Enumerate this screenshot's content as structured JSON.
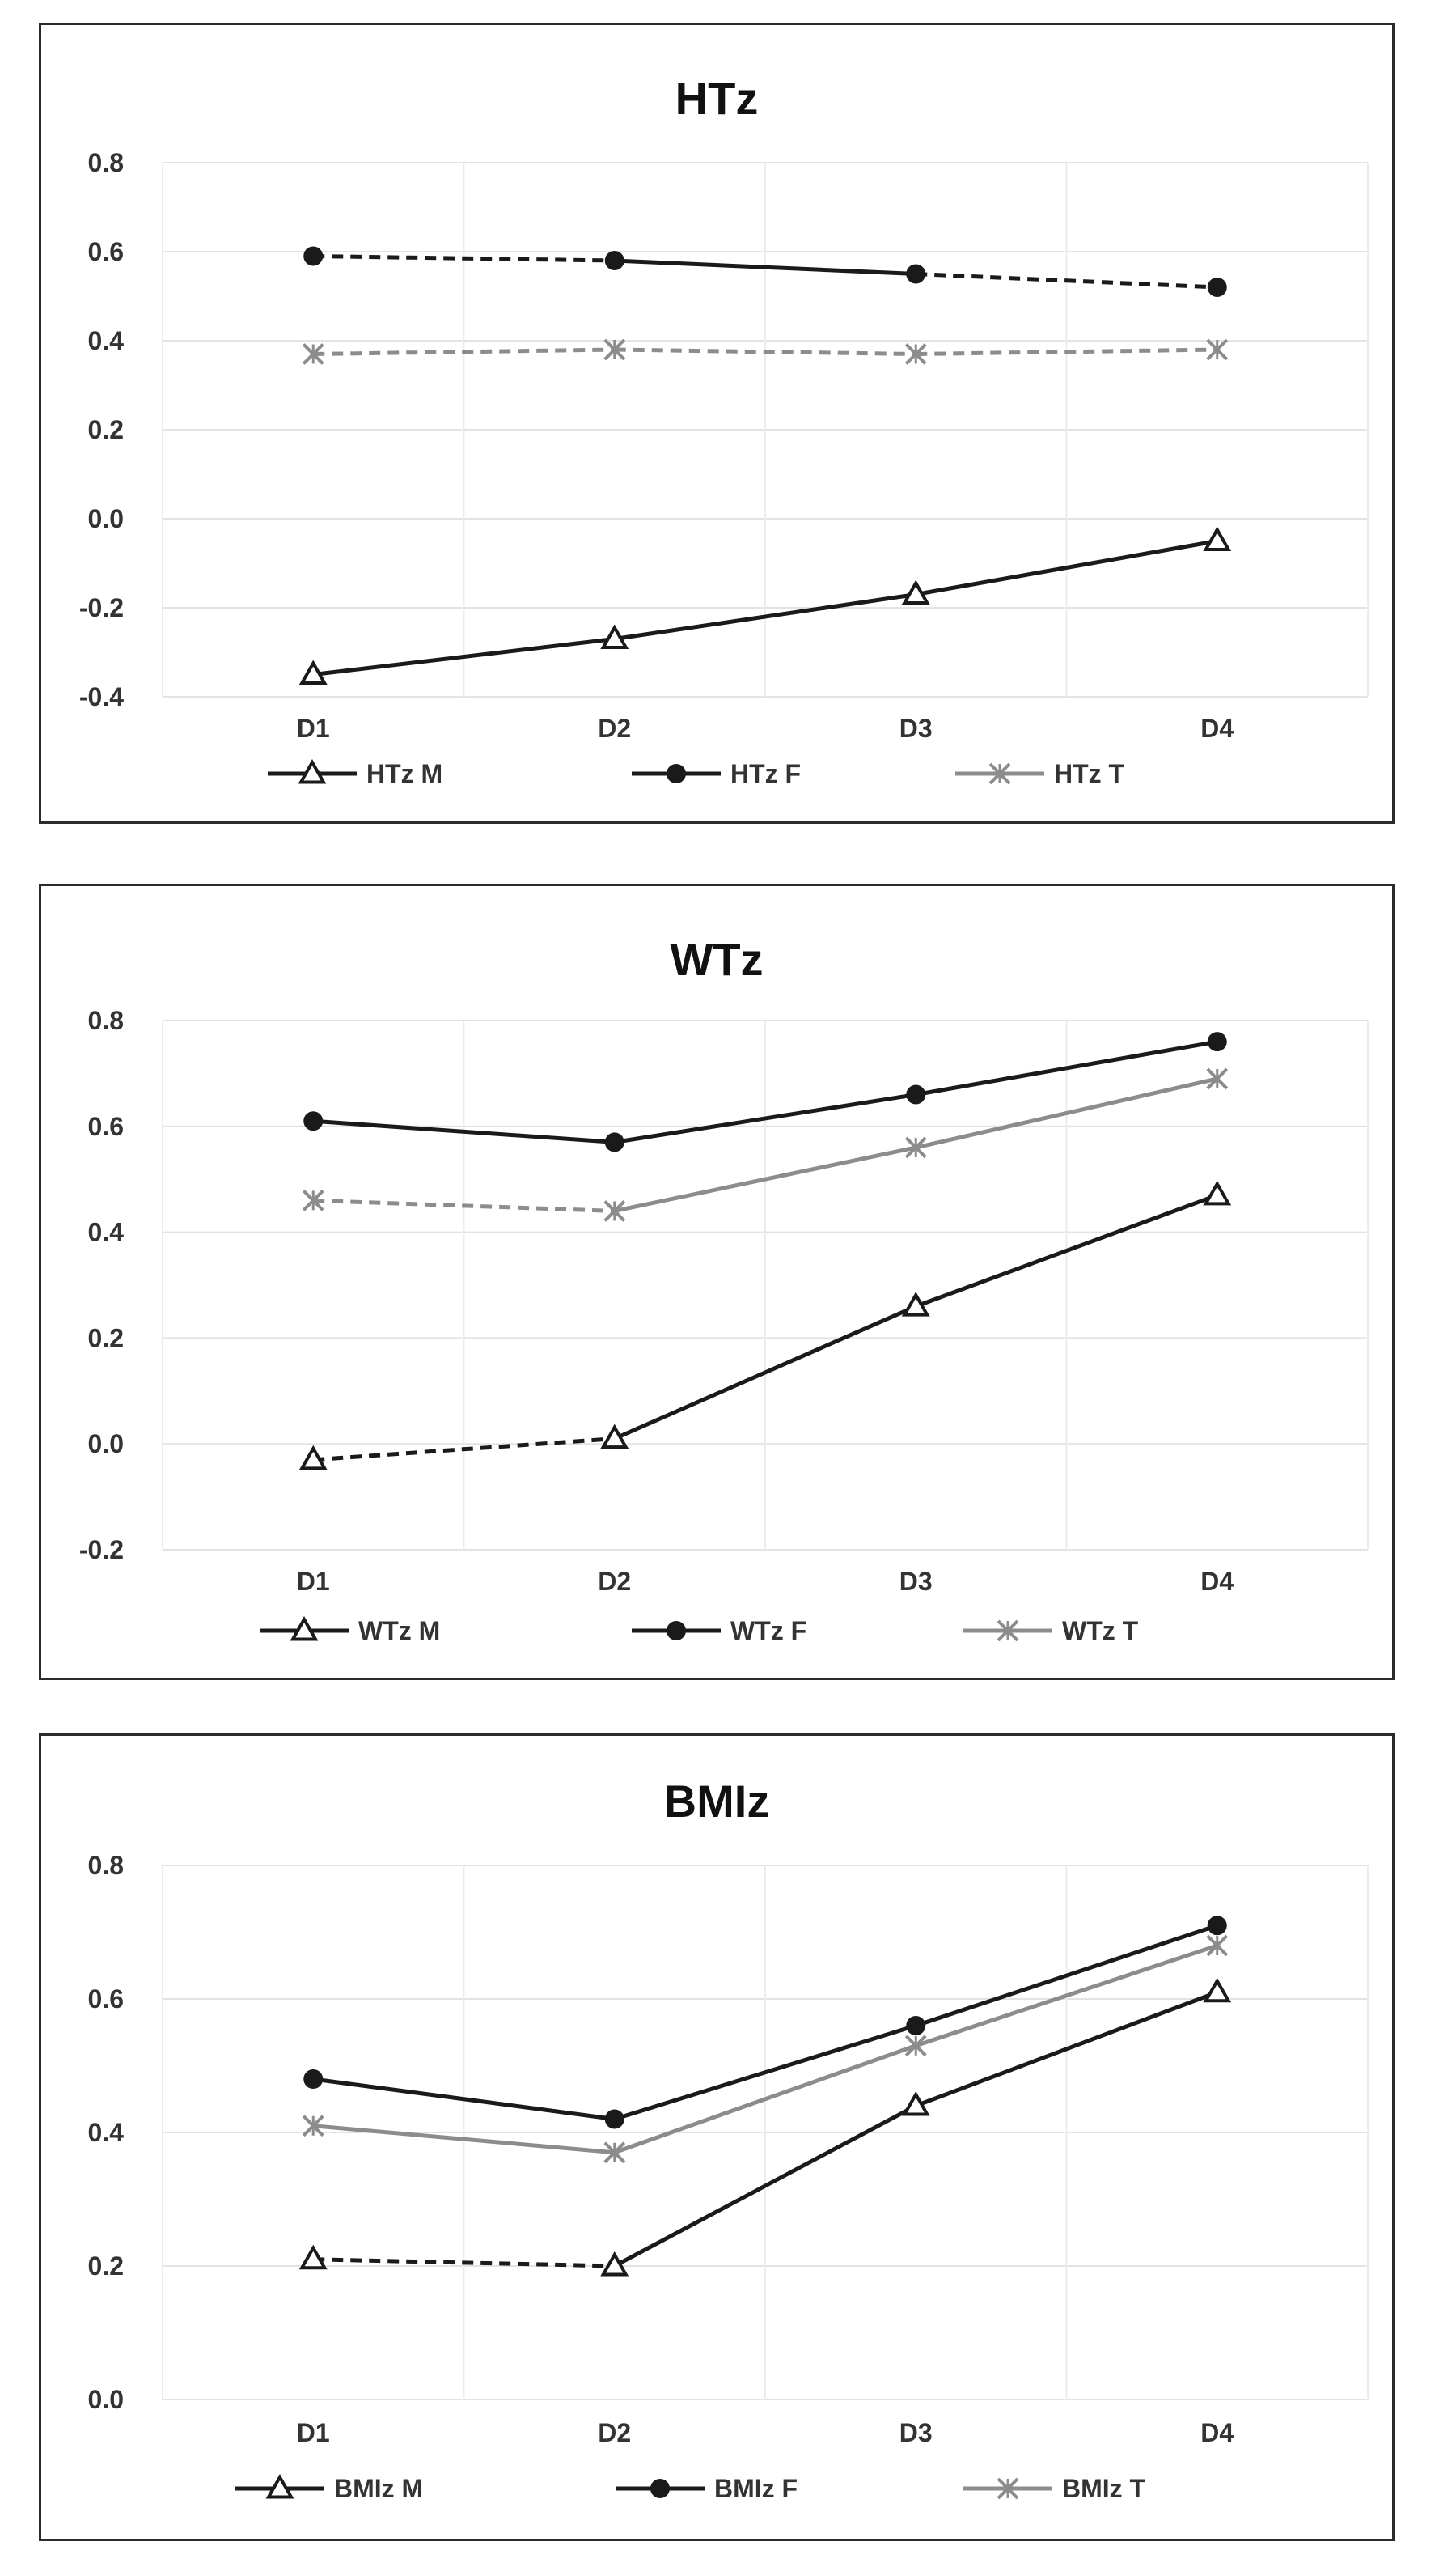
{
  "chart_data": [
    {
      "type": "line",
      "title": "HTz",
      "categories": [
        "D1",
        "D2",
        "D3",
        "D4"
      ],
      "ylim": [
        -0.4,
        0.8
      ],
      "yticks": [
        "0.8",
        "0.6",
        "0.4",
        "0.2",
        "0.0",
        "-0.2",
        "-0.4"
      ],
      "grid": true,
      "legend_position": "bottom",
      "series": [
        {
          "name": "HTz M",
          "values": [
            -0.35,
            -0.27,
            -0.17,
            -0.05
          ],
          "color": "#1a1a1a",
          "marker": "triangle",
          "dashed_segments": []
        },
        {
          "name": "HTz F",
          "values": [
            0.59,
            0.58,
            0.55,
            0.52
          ],
          "color": "#1a1a1a",
          "marker": "circle",
          "dashed_segments": [
            0,
            2
          ]
        },
        {
          "name": "HTz T",
          "values": [
            0.37,
            0.38,
            0.37,
            0.38
          ],
          "color": "#8c8c8c",
          "marker": "x",
          "dashed_segments": [
            0,
            1,
            2
          ]
        }
      ]
    },
    {
      "type": "line",
      "title": "WTz",
      "categories": [
        "D1",
        "D2",
        "D3",
        "D4"
      ],
      "ylim": [
        -0.2,
        0.8
      ],
      "yticks": [
        "0.8",
        "0.6",
        "0.4",
        "0.2",
        "0.0",
        "-0.2"
      ],
      "grid": true,
      "legend_position": "bottom",
      "series": [
        {
          "name": "WTz M",
          "values": [
            -0.03,
            0.01,
            0.26,
            0.47
          ],
          "color": "#1a1a1a",
          "marker": "triangle",
          "dashed_segments": [
            0
          ]
        },
        {
          "name": "WTz F",
          "values": [
            0.61,
            0.57,
            0.66,
            0.76
          ],
          "color": "#1a1a1a",
          "marker": "circle",
          "dashed_segments": []
        },
        {
          "name": "WTz T",
          "values": [
            0.46,
            0.44,
            0.56,
            0.69
          ],
          "color": "#8c8c8c",
          "marker": "x",
          "dashed_segments": [
            0
          ]
        }
      ]
    },
    {
      "type": "line",
      "title": "BMIz",
      "categories": [
        "D1",
        "D2",
        "D3",
        "D4"
      ],
      "ylim": [
        0.0,
        0.8
      ],
      "yticks": [
        "0.8",
        "0.6",
        "0.4",
        "0.2",
        "0.0"
      ],
      "grid": true,
      "legend_position": "bottom",
      "series": [
        {
          "name": "BMIz M",
          "values": [
            0.21,
            0.2,
            0.44,
            0.61
          ],
          "color": "#1a1a1a",
          "marker": "triangle",
          "dashed_segments": [
            0
          ]
        },
        {
          "name": "BMIz F",
          "values": [
            0.48,
            0.42,
            0.56,
            0.71
          ],
          "color": "#1a1a1a",
          "marker": "circle",
          "dashed_segments": []
        },
        {
          "name": "BMIz T",
          "values": [
            0.41,
            0.37,
            0.53,
            0.68
          ],
          "color": "#8c8c8c",
          "marker": "x",
          "dashed_segments": []
        }
      ]
    }
  ]
}
